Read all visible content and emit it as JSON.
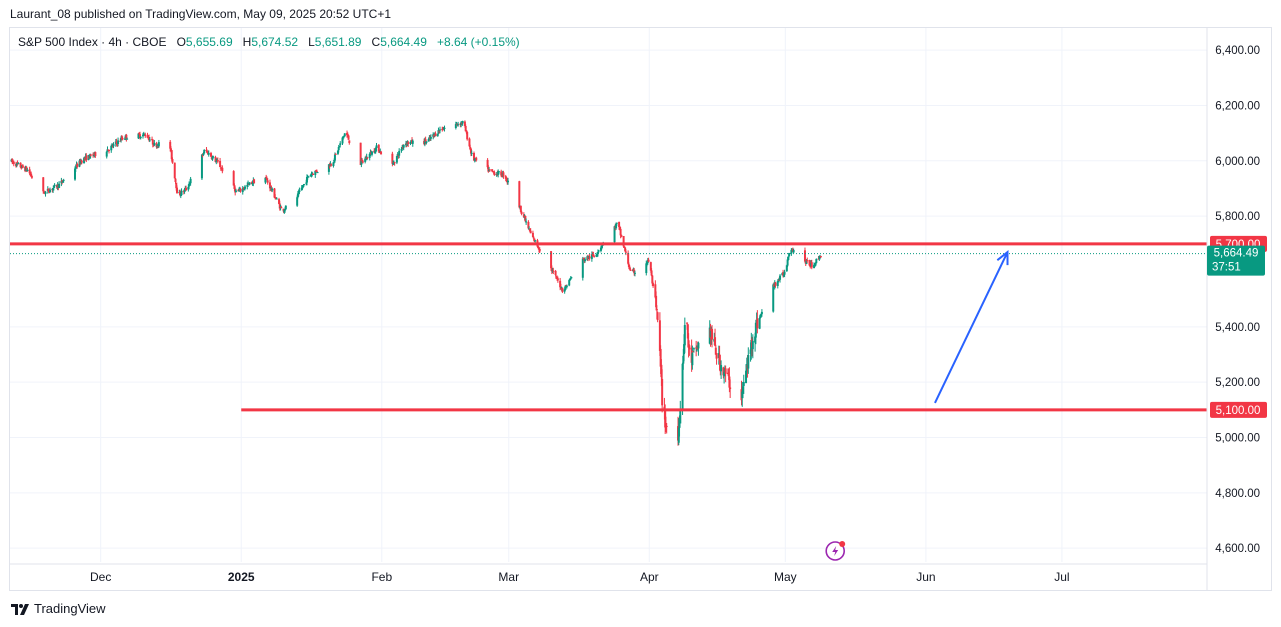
{
  "header": {
    "published": "Laurant_08 published on TradingView.com, May 09, 2025 20:52 UTC+1"
  },
  "legend": {
    "symbol": "S&P 500 Index · 4h · CBOE",
    "o_label": "O",
    "o": "5,655.69",
    "h_label": "H",
    "h": "5,674.52",
    "l_label": "L",
    "l": "5,651.89",
    "c_label": "C",
    "c": "5,664.49",
    "change": "+8.64 (+0.15%)"
  },
  "brand": {
    "name": "TradingView"
  },
  "colors": {
    "up": "#089981",
    "down": "#f23645",
    "level": "#f23645",
    "arrow": "#2962ff",
    "grid": "#f0f3fa",
    "text": "#131722",
    "price_tag": "#089981"
  },
  "chart_data": {
    "type": "candlestick",
    "y_range": [
      4550,
      6480
    ],
    "y_ticks": [
      {
        "value": 6400,
        "label": "6,400.00"
      },
      {
        "value": 6200,
        "label": "6,200.00"
      },
      {
        "value": 6000,
        "label": "6,000.00"
      },
      {
        "value": 5800,
        "label": "5,800.00"
      },
      {
        "value": 5400,
        "label": "5,400.00"
      },
      {
        "value": 5200,
        "label": "5,200.00"
      },
      {
        "value": 5000,
        "label": "5,000.00"
      },
      {
        "value": 4800,
        "label": "4,800.00"
      },
      {
        "value": 4600,
        "label": "4,600.00"
      }
    ],
    "x_range": [
      "2024-11-11",
      "2025-08-02"
    ],
    "x_ticks": [
      {
        "date": "2024-12-01",
        "label": "Dec",
        "bold": false
      },
      {
        "date": "2025-01-01",
        "label": "2025",
        "bold": true
      },
      {
        "date": "2025-02-01",
        "label": "Feb",
        "bold": false
      },
      {
        "date": "2025-03-01",
        "label": "Mar",
        "bold": false
      },
      {
        "date": "2025-04-01",
        "label": "Apr",
        "bold": false
      },
      {
        "date": "2025-05-01",
        "label": "May",
        "bold": false
      },
      {
        "date": "2025-06-01",
        "label": "Jun",
        "bold": false
      },
      {
        "date": "2025-07-01",
        "label": "Jul",
        "bold": false
      }
    ],
    "levels": [
      {
        "value": 5700,
        "label": "5,700.00",
        "from": "start"
      },
      {
        "value": 5100,
        "label": "5,100.00",
        "from": "2025-01-01"
      }
    ],
    "last_price": {
      "value": 5664.49,
      "label": "5,664.49",
      "countdown": "37:51"
    },
    "arrow": {
      "from": {
        "date": "2025-06-03",
        "value": 5125
      },
      "to": {
        "date": "2025-06-19",
        "value": 5670
      }
    },
    "candle_path": [
      [
        "2024-11-11",
        6000
      ],
      [
        "2024-11-15",
        5965
      ],
      [
        "2024-11-18",
        5880
      ],
      [
        "2024-11-22",
        5915
      ],
      [
        "2024-11-27",
        6005
      ],
      [
        "2024-12-03",
        6045
      ],
      [
        "2024-12-06",
        6085
      ],
      [
        "2024-12-11",
        6095
      ],
      [
        "2024-12-13",
        6055
      ],
      [
        "2024-12-16",
        6080
      ],
      [
        "2024-12-18",
        5875
      ],
      [
        "2024-12-20",
        5900
      ],
      [
        "2024-12-24",
        6040
      ],
      [
        "2024-12-27",
        5990
      ],
      [
        "2024-12-31",
        5885
      ],
      [
        "2025-01-06",
        5950
      ],
      [
        "2025-01-10",
        5820
      ],
      [
        "2025-01-13",
        5860
      ],
      [
        "2025-01-16",
        5950
      ],
      [
        "2025-01-21",
        5990
      ],
      [
        "2025-01-24",
        6105
      ],
      [
        "2025-01-27",
        5985
      ],
      [
        "2025-01-31",
        6050
      ],
      [
        "2025-02-03",
        5975
      ],
      [
        "2025-02-06",
        6065
      ],
      [
        "2025-02-11",
        6070
      ],
      [
        "2025-02-14",
        6115
      ],
      [
        "2025-02-19",
        6140
      ],
      [
        "2025-02-21",
        6010
      ],
      [
        "2025-02-25",
        5960
      ],
      [
        "2025-02-28",
        5950
      ],
      [
        "2025-03-03",
        5850
      ],
      [
        "2025-03-06",
        5730
      ],
      [
        "2025-03-10",
        5620
      ],
      [
        "2025-03-13",
        5530
      ],
      [
        "2025-03-17",
        5640
      ],
      [
        "2025-03-20",
        5660
      ],
      [
        "2025-03-25",
        5775
      ],
      [
        "2025-03-28",
        5590
      ],
      [
        "2025-04-01",
        5640
      ],
      [
        "2025-04-03",
        5400
      ],
      [
        "2025-04-04",
        5090
      ],
      [
        "2025-04-07",
        4900
      ],
      [
        "2025-04-09",
        5450
      ],
      [
        "2025-04-10",
        5270
      ],
      [
        "2025-04-14",
        5410
      ],
      [
        "2025-04-16",
        5290
      ],
      [
        "2025-04-21",
        5120
      ],
      [
        "2025-04-24",
        5380
      ],
      [
        "2025-04-28",
        5540
      ],
      [
        "2025-05-01",
        5600
      ],
      [
        "2025-05-02",
        5690
      ],
      [
        "2025-05-05",
        5640
      ],
      [
        "2025-05-07",
        5620
      ],
      [
        "2025-05-09",
        5664
      ]
    ]
  }
}
